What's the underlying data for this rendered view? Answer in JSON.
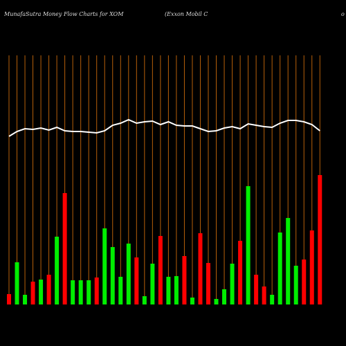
{
  "chart_data": {
    "type": "bar",
    "title": "MunafaSutra  Money Flow  Charts for XOM",
    "subtitle": "(Exxon  Mobil C",
    "title_right": "o",
    "categories": [
      null,
      null,
      null,
      null,
      null,
      null,
      null,
      null,
      null,
      null,
      null,
      null,
      null,
      null,
      null,
      null,
      null,
      null,
      null,
      null,
      null,
      null,
      null,
      null,
      null,
      null,
      null,
      null,
      null,
      null,
      null,
      null,
      null,
      null,
      null,
      null,
      null,
      null,
      null,
      null
    ],
    "series": [
      {
        "color": "#ff0000",
        "values": [
          15,
          null,
          null,
          33,
          null,
          43,
          null,
          161,
          null,
          null,
          null,
          39,
          null,
          null,
          null,
          null,
          68,
          null,
          null,
          99,
          null,
          null,
          70,
          null,
          103,
          60,
          null,
          null,
          null,
          92,
          null,
          43,
          26,
          null,
          null,
          null,
          null,
          65,
          107,
          187
        ]
      },
      {
        "color": "#00ee00",
        "values": [
          null,
          61,
          14,
          null,
          36,
          null,
          98,
          null,
          35,
          35,
          35,
          null,
          110,
          83,
          40,
          88,
          null,
          12,
          59,
          null,
          40,
          41,
          null,
          10,
          null,
          null,
          8,
          22,
          59,
          null,
          171,
          null,
          null,
          14,
          104,
          125,
          56,
          null,
          null,
          null
        ]
      },
      {
        "type": "line",
        "color": "#ffffff",
        "values": [
          243,
          250,
          254,
          253,
          255,
          252,
          256,
          251,
          250,
          250,
          249,
          248,
          251,
          259,
          262,
          267,
          262,
          264,
          265,
          260,
          264,
          259,
          258,
          258,
          254,
          250,
          251,
          255,
          257,
          254,
          261,
          259,
          257,
          256,
          262,
          266,
          266,
          264,
          260,
          251
        ]
      }
    ],
    "grid_color": "#b8600a"
  }
}
